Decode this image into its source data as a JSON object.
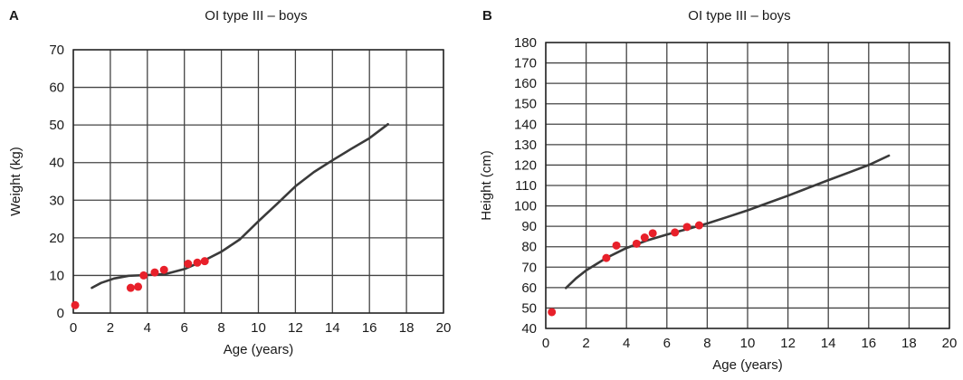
{
  "chart_data": [
    {
      "type": "line",
      "panel_label": "A",
      "title": "OI type III – boys",
      "xlabel": "Age (years)",
      "ylabel": "Weight (kg)",
      "xlim": [
        0,
        20
      ],
      "ylim": [
        0,
        70
      ],
      "x_ticks": [
        "0",
        "2",
        "4",
        "6",
        "8",
        "10",
        "12",
        "14",
        "16",
        "18",
        "20"
      ],
      "y_ticks": [
        "0",
        "10",
        "20",
        "30",
        "40",
        "50",
        "60",
        "70"
      ],
      "grid": true,
      "colors": {
        "curve": "#3a3a3a",
        "points": "#e8202a",
        "grid": "#444444"
      },
      "series": [
        {
          "kind": "line",
          "points": [
            [
              1.0,
              6.7
            ],
            [
              1.5,
              8.0
            ],
            [
              2.2,
              9.2
            ],
            [
              3.0,
              9.9
            ],
            [
              4.0,
              10.1
            ],
            [
              5.0,
              10.4
            ],
            [
              6.0,
              11.7
            ],
            [
              7.0,
              13.8
            ],
            [
              8.0,
              16.3
            ],
            [
              9.0,
              19.6
            ],
            [
              10.0,
              24.4
            ],
            [
              11.0,
              29.0
            ],
            [
              12.0,
              33.7
            ],
            [
              13.0,
              37.5
            ],
            [
              14.0,
              40.6
            ],
            [
              15.0,
              43.6
            ],
            [
              16.0,
              46.5
            ],
            [
              17.0,
              50.2
            ]
          ]
        },
        {
          "kind": "scatter",
          "points": [
            [
              0.1,
              2.1
            ],
            [
              3.1,
              6.7
            ],
            [
              3.5,
              7.0
            ],
            [
              3.8,
              10.0
            ],
            [
              4.4,
              10.8
            ],
            [
              4.9,
              11.5
            ],
            [
              6.2,
              13.1
            ],
            [
              6.7,
              13.4
            ],
            [
              7.1,
              13.8
            ]
          ]
        }
      ]
    },
    {
      "type": "line",
      "panel_label": "B",
      "title": "OI type III – boys",
      "xlabel": "Age (years)",
      "ylabel": "Height (cm)",
      "xlim": [
        0,
        20
      ],
      "ylim": [
        40,
        180
      ],
      "x_ticks": [
        "0",
        "2",
        "4",
        "6",
        "8",
        "10",
        "12",
        "14",
        "16",
        "18",
        "20"
      ],
      "y_ticks": [
        "40",
        "50",
        "60",
        "70",
        "80",
        "90",
        "100",
        "110",
        "120",
        "130",
        "140",
        "150",
        "160",
        "170",
        "180"
      ],
      "grid": true,
      "colors": {
        "curve": "#3a3a3a",
        "points": "#e8202a",
        "grid": "#444444"
      },
      "series": [
        {
          "kind": "line",
          "points": [
            [
              1.0,
              59.8
            ],
            [
              1.5,
              64.5
            ],
            [
              2.0,
              68.4
            ],
            [
              3.0,
              74.5
            ],
            [
              4.0,
              79.4
            ],
            [
              5.0,
              83.0
            ],
            [
              6.0,
              86.0
            ],
            [
              7.0,
              88.6
            ],
            [
              8.0,
              91.4
            ],
            [
              9.0,
              94.6
            ],
            [
              10.0,
              97.8
            ],
            [
              11.0,
              101.4
            ],
            [
              12.0,
              105.0
            ],
            [
              13.0,
              108.8
            ],
            [
              14.0,
              112.6
            ],
            [
              15.0,
              116.3
            ],
            [
              16.0,
              120.0
            ],
            [
              17.0,
              124.6
            ]
          ]
        },
        {
          "kind": "scatter",
          "points": [
            [
              0.3,
              48.0
            ],
            [
              3.0,
              74.5
            ],
            [
              3.5,
              80.6
            ],
            [
              4.5,
              81.5
            ],
            [
              4.9,
              84.5
            ],
            [
              5.3,
              86.6
            ],
            [
              6.4,
              87.0
            ],
            [
              7.0,
              89.7
            ],
            [
              7.6,
              90.5
            ]
          ]
        }
      ]
    }
  ]
}
